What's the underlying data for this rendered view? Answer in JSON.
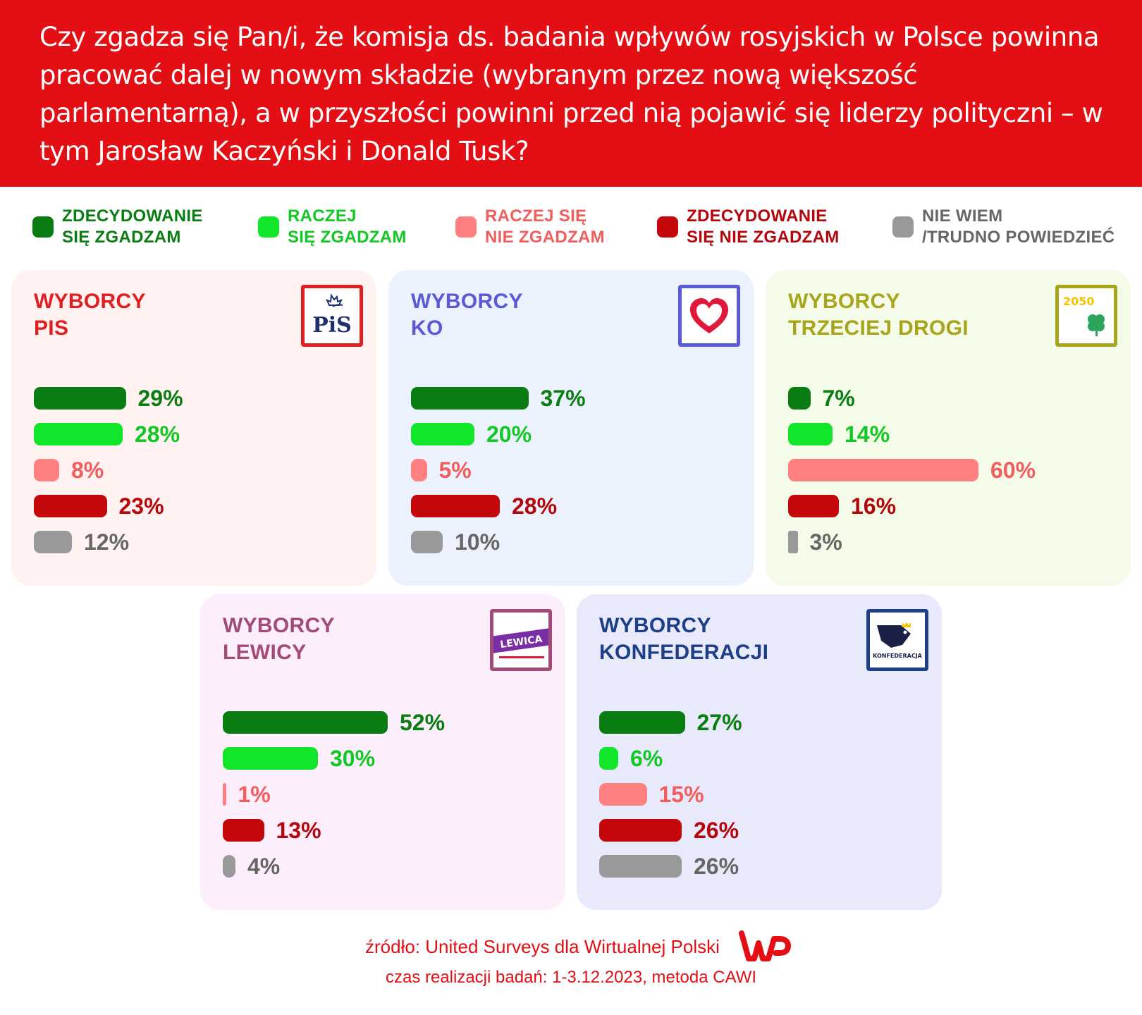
{
  "header": {
    "title": "Czy zgadza się Pan/i, że komisja ds. badania wpływów rosyjskich w Polsce powinna pracować dalej w nowym składzie (wybranym przez nową większość parlamentarną), a w przyszłości powinni przed nią pojawić się liderzy polityczni – w tym Jarosław Kaczyński i Donald Tusk?"
  },
  "legend": [
    {
      "line1": "ZDECYDOWANIE",
      "line2": "SIĘ ZGADZAM",
      "color": "#0a7d12"
    },
    {
      "line1": "RACZEJ",
      "line2": "SIĘ ZGADZAM",
      "color": "#12e62a"
    },
    {
      "line1": "RACZEJ SIĘ",
      "line2": "NIE ZGADZAM",
      "color": "#ff8080"
    },
    {
      "line1": "ZDECYDOWANIE",
      "line2": "SIĘ NIE ZGADZAM",
      "color": "#c4070b"
    },
    {
      "line1": "NIE WIEM",
      "line2": "/TRUDNO POWIEDZIEĆ",
      "color": "#999999"
    }
  ],
  "chart_data": [
    {
      "type": "bar",
      "title_line1": "WYBORCY",
      "title_line2": "PIS",
      "logo": "pis-logo",
      "logo_text": "PiS",
      "title_color": "#e02020",
      "bg_color": "#fff2f1",
      "categories": [
        "ZDECYDOWANIE SIĘ ZGADZAM",
        "RACZEJ SIĘ ZGADZAM",
        "RACZEJ SIĘ NIE ZGADZAM",
        "ZDECYDOWANIE SIĘ NIE ZGADZAM",
        "NIE WIEM /TRUDNO POWIEDZIEĆ"
      ],
      "values": [
        29,
        28,
        8,
        23,
        12
      ],
      "labels": [
        "29%",
        "28%",
        "8%",
        "23%",
        "12%"
      ]
    },
    {
      "type": "bar",
      "title_line1": "WYBORCY",
      "title_line2": "KO",
      "logo": "ko-heart-logo",
      "title_color": "#5a5ad6",
      "bg_color": "#ebf2fd",
      "categories": [
        "ZDECYDOWANIE SIĘ ZGADZAM",
        "RACZEJ SIĘ ZGADZAM",
        "RACZEJ SIĘ NIE ZGADZAM",
        "ZDECYDOWANIE SIĘ NIE ZGADZAM",
        "NIE WIEM /TRUDNO POWIEDZIEĆ"
      ],
      "values": [
        37,
        20,
        5,
        28,
        10
      ],
      "labels": [
        "37%",
        "20%",
        "5%",
        "28%",
        "10%"
      ]
    },
    {
      "type": "bar",
      "title_line1": "WYBORCY",
      "title_line2": "TRZECIEJ DROGI",
      "logo": "trzecia-droga-logo",
      "logo_text": "2050",
      "title_color": "#a7a51c",
      "bg_color": "#f4fbe9",
      "categories": [
        "ZDECYDOWANIE SIĘ ZGADZAM",
        "RACZEJ SIĘ ZGADZAM",
        "RACZEJ SIĘ NIE ZGADZAM",
        "ZDECYDOWANIE SIĘ NIE ZGADZAM",
        "NIE WIEM /TRUDNO POWIEDZIEĆ"
      ],
      "values": [
        7,
        14,
        60,
        16,
        3
      ],
      "labels": [
        "7%",
        "14%",
        "60%",
        "16%",
        "3%"
      ]
    },
    {
      "type": "bar",
      "title_line1": "WYBORCY",
      "title_line2": "LEWICY",
      "logo": "lewica-logo",
      "logo_text": "LEWICA",
      "title_color": "#a24a79",
      "bg_color": "#fdeefb",
      "categories": [
        "ZDECYDOWANIE SIĘ ZGADZAM",
        "RACZEJ SIĘ ZGADZAM",
        "RACZEJ SIĘ NIE ZGADZAM",
        "ZDECYDOWANIE SIĘ NIE ZGADZAM",
        "NIE WIEM /TRUDNO POWIEDZIEĆ"
      ],
      "values": [
        52,
        30,
        1,
        13,
        4
      ],
      "labels": [
        "52%",
        "30%",
        "1%",
        "13%",
        "4%"
      ]
    },
    {
      "type": "bar",
      "title_line1": "WYBORCY",
      "title_line2": "KONFEDERACJI",
      "logo": "konfederacja-logo",
      "logo_text": "KONFEDERACJA",
      "title_color": "#1d3f86",
      "bg_color": "#e8eafb",
      "categories": [
        "ZDECYDOWANIE SIĘ ZGADZAM",
        "RACZEJ SIĘ ZGADZAM",
        "RACZEJ SIĘ NIE ZGADZAM",
        "ZDECYDOWANIE SIĘ NIE ZGADZAM",
        "NIE WIEM /TRUDNO POWIEDZIEĆ"
      ],
      "values": [
        27,
        6,
        15,
        26,
        26
      ],
      "labels": [
        "27%",
        "6%",
        "15%",
        "26%",
        "26%"
      ]
    }
  ],
  "value_colors": [
    "#0a7d12",
    "#12c824",
    "#f25d5d",
    "#b5070b",
    "#666666"
  ],
  "bar_colors": [
    "#0a7d12",
    "#12e62a",
    "#ff8080",
    "#c4070b",
    "#999999"
  ],
  "footer": {
    "source": "źródło: United Surveys dla Wirtualnej Polski",
    "method": "czas realizacji badań: 1-3.12.2023, metoda CAWI",
    "logo": "wp-logo"
  }
}
